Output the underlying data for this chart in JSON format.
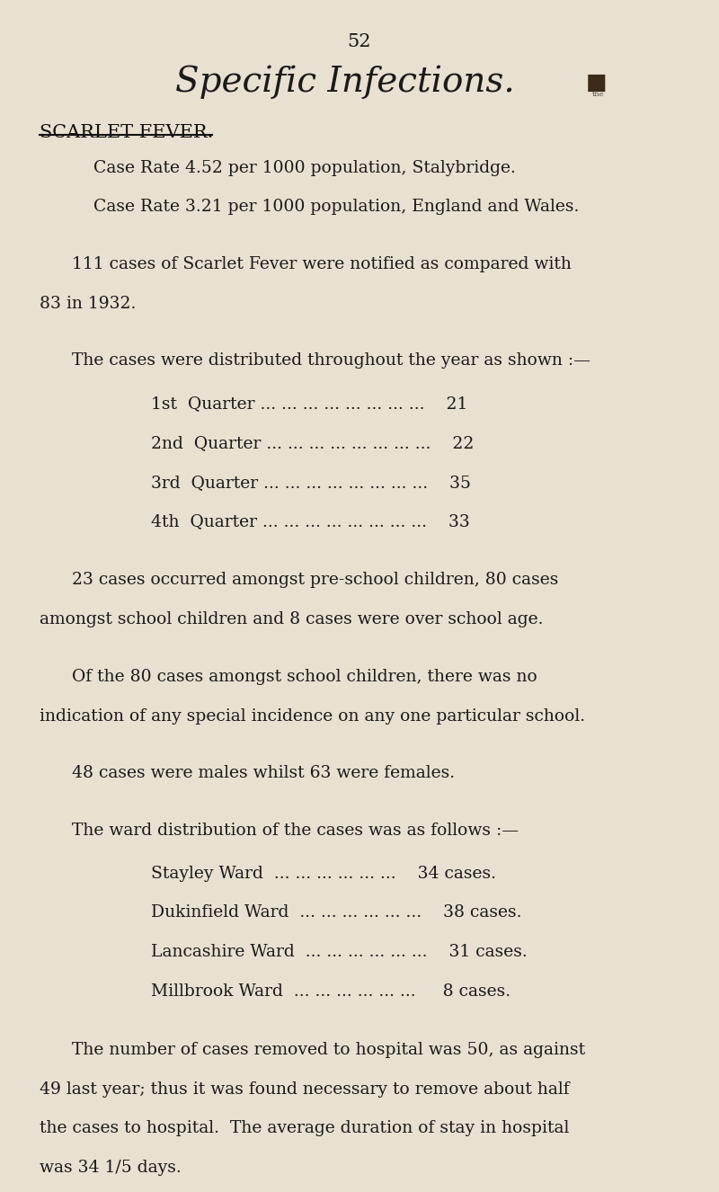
{
  "bg_color": "#e8e0d0",
  "page_number": "52",
  "title": "Specific Infections.",
  "section_heading": "SCARLET FEVER.",
  "text_color": "#1a1a1a",
  "heading_color": "#111111",
  "title_size": 28,
  "page_num_size": 15,
  "section_size": 15
}
